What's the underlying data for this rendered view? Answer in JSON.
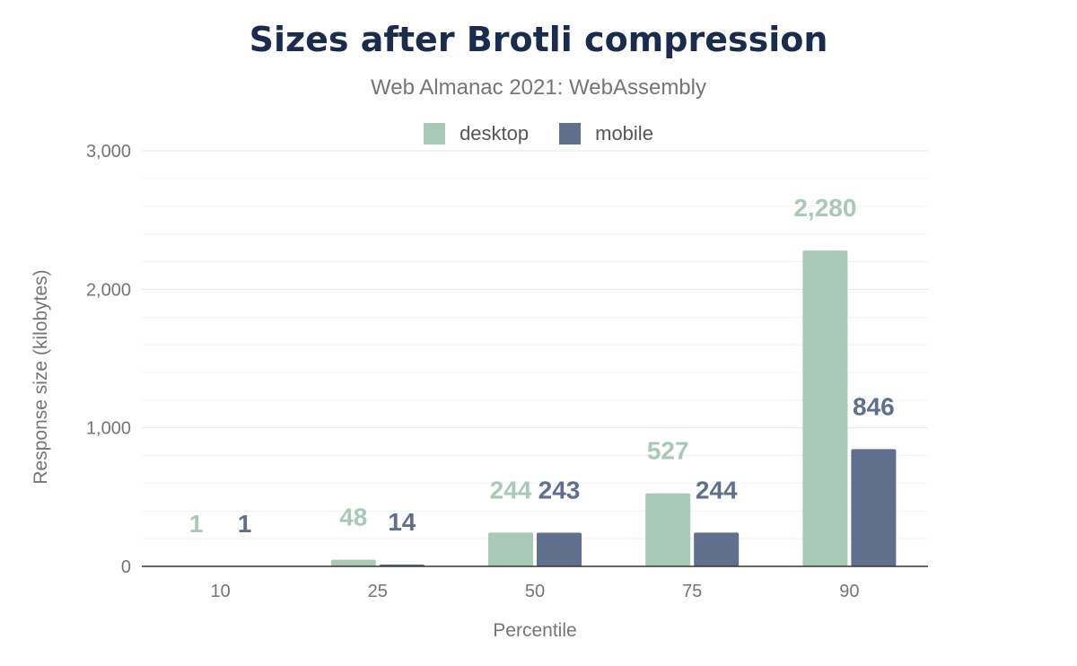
{
  "chart_data": {
    "type": "bar",
    "title": "Sizes after Brotli compression",
    "subtitle": "Web Almanac 2021: WebAssembly",
    "xlabel": "Percentile",
    "ylabel": "Response size (kilobytes)",
    "categories": [
      "10",
      "25",
      "50",
      "75",
      "90"
    ],
    "series": [
      {
        "name": "desktop",
        "color": "#a8c9b8",
        "values": [
          1,
          48,
          244,
          527,
          2280
        ],
        "labels": [
          "1",
          "48",
          "244",
          "527",
          "2,280"
        ]
      },
      {
        "name": "mobile",
        "color": "#5f6f8c",
        "values": [
          1,
          14,
          243,
          244,
          846
        ],
        "labels": [
          "1",
          "14",
          "243",
          "244",
          "846"
        ]
      }
    ],
    "ylim": [
      0,
      3000
    ],
    "yticks": [
      0,
      1000,
      2000,
      3000
    ],
    "ytick_labels": [
      "0",
      "1,000",
      "2,000",
      "3,000"
    ],
    "grid": true,
    "legend_position": "top-center"
  }
}
